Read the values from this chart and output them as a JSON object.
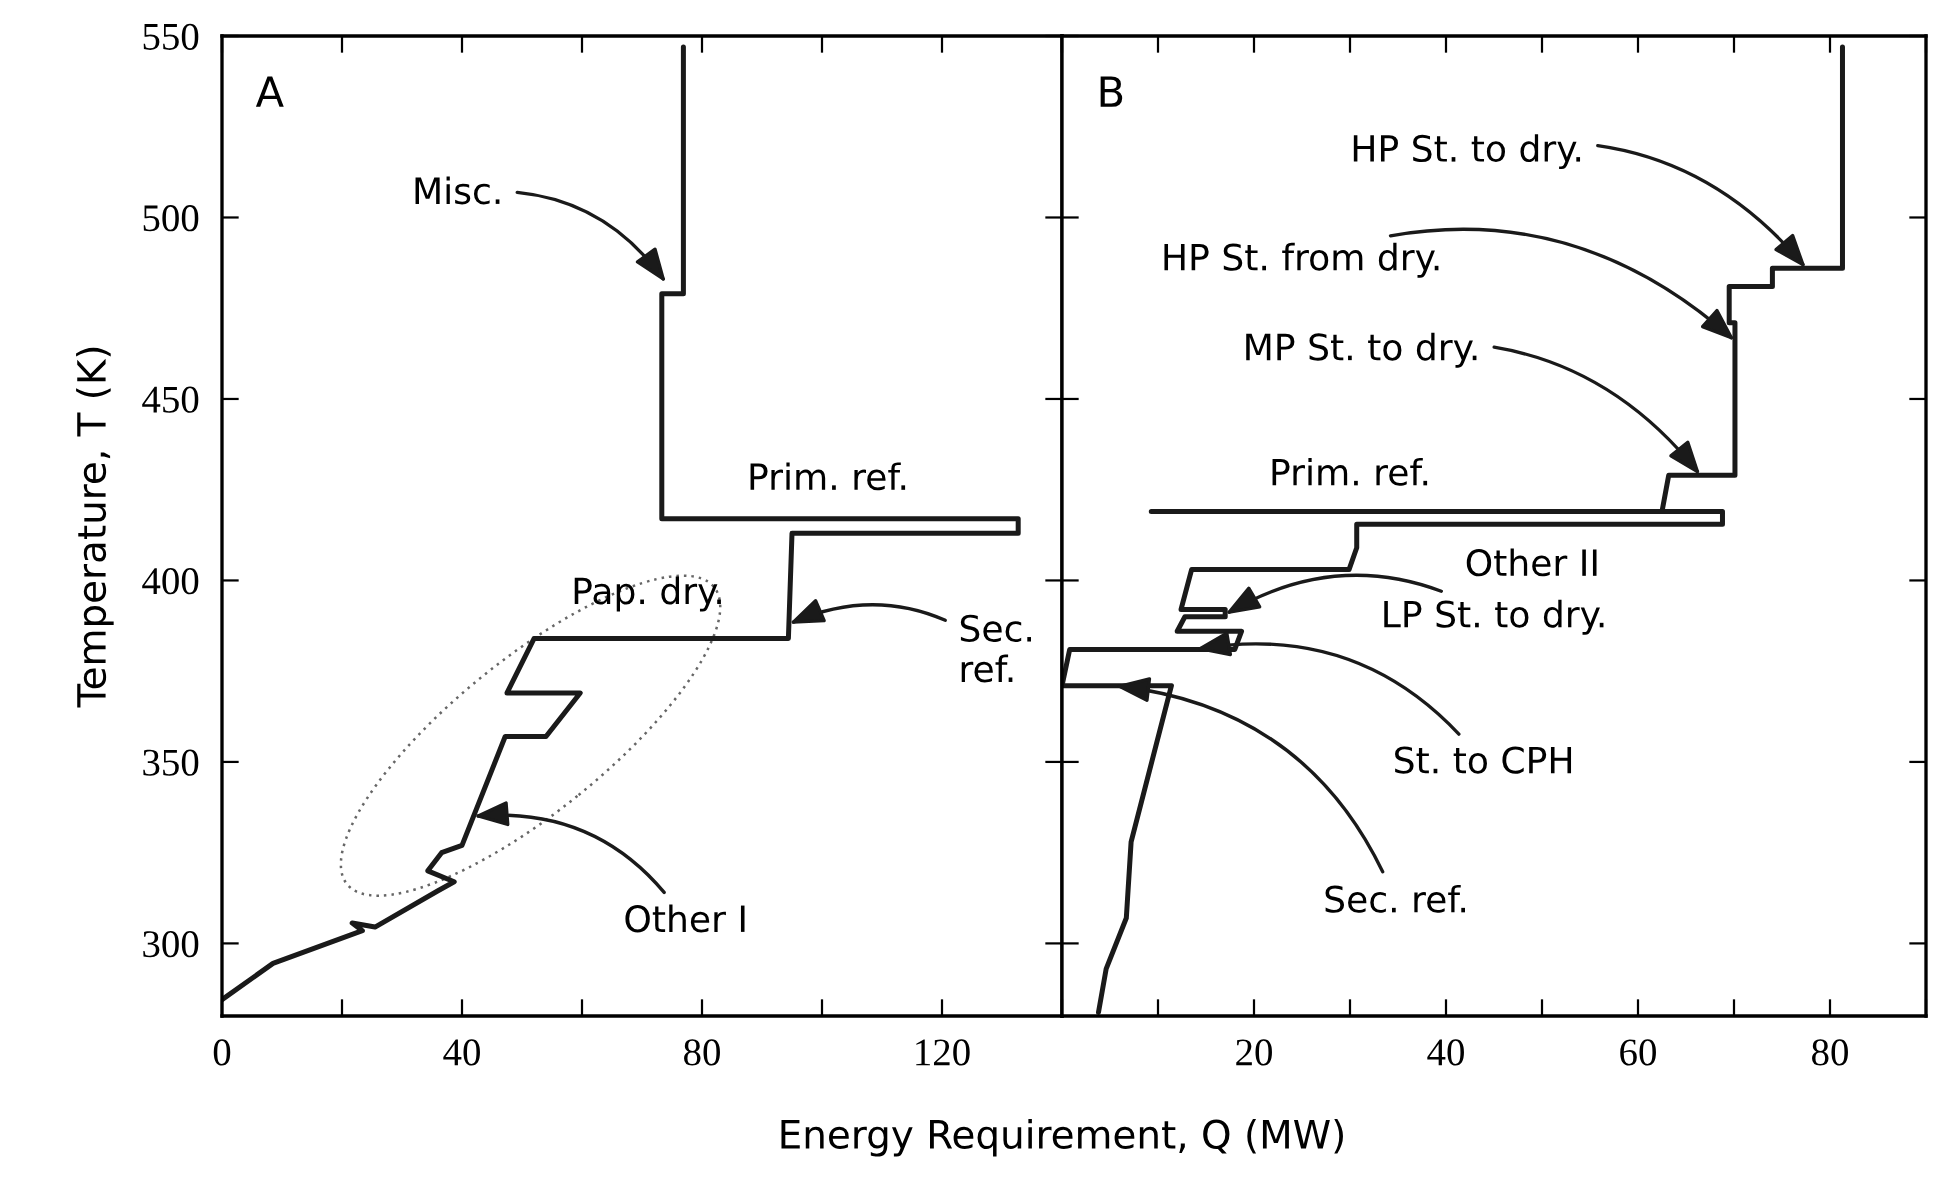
{
  "chart_data": [
    {
      "type": "line",
      "title": "A",
      "xlabel": "Energy Requirement, Q (MW)",
      "ylabel": "Temperature, T (K)",
      "xlim": [
        0,
        140
      ],
      "xticks": [
        0,
        {
          "value": 20,
          "label": null
        },
        40,
        {
          "value": 60,
          "label": null
        },
        80,
        {
          "value": 100,
          "label": null
        },
        120,
        {
          "value": 140,
          "label": null
        }
      ],
      "ylim": [
        280,
        550
      ],
      "yticks": [
        300,
        350,
        400,
        450,
        500,
        550
      ],
      "series": [
        {
          "color": "#1a1a1a",
          "x": [
            0,
            8.5,
            23.4,
            21.7,
            25.5,
            36,
            38.7,
            34.3,
            36.6,
            40,
            47.2,
            54,
            59.7,
            47.5,
            52,
            94.4,
            95,
            132.7,
            132.7,
            73.3,
            73.3,
            76.9,
            76.9
          ],
          "values": [
            284.5,
            294.5,
            303.5,
            305.6,
            304.5,
            314.5,
            317,
            320,
            325,
            327,
            357,
            357,
            369,
            369,
            384,
            384,
            413,
            413,
            417,
            417,
            479,
            479,
            547
          ]
        }
      ],
      "annotations": [
        {
          "text": "Misc.",
          "x": 74,
          "y": 482
        },
        {
          "text": "Prim. ref.",
          "x": 101,
          "y": 417
        },
        {
          "text": "Pap. dry.",
          "x": 71,
          "y": 384
        },
        {
          "text": "Sec.\nref.",
          "x": 94.5,
          "y": 388
        },
        {
          "text": "Other I",
          "x": 41.9,
          "y": 335
        }
      ]
    },
    {
      "type": "line",
      "title": "B",
      "tick_labels": "x",
      "xlim": [
        0,
        90
      ],
      "xticks": [
        {
          "value": 0,
          "label": null
        },
        {
          "value": 10,
          "label": null
        },
        20,
        {
          "value": 30,
          "label": null
        },
        40,
        {
          "value": 50,
          "label": null
        },
        60,
        {
          "value": 70,
          "label": null
        },
        80,
        {
          "value": 90,
          "label": null
        }
      ],
      "ylim": [
        280,
        550
      ],
      "yticks": [
        300,
        350,
        400,
        450,
        500,
        550
      ],
      "series": [
        {
          "color": "#1a1a1a",
          "x": [
            3.8,
            4.6,
            6.7,
            7.2,
            11.4,
            0,
            0.8,
            18,
            18.7,
            12,
            12.8,
            17,
            17,
            12.4,
            13.5,
            29.9,
            30.7,
            30.7,
            68.8,
            68.8,
            9.3,
            62.5,
            63.2,
            70.1,
            70.1,
            69.5,
            69.5,
            74,
            74,
            81.3,
            81.3
          ],
          "values": [
            281,
            293,
            307,
            328,
            371,
            371,
            381,
            381,
            386,
            386,
            390,
            390,
            392,
            392,
            403,
            403,
            409,
            415.5,
            415.5,
            419,
            419,
            419,
            429,
            429,
            471,
            471,
            481,
            481,
            486,
            486,
            547
          ]
        }
      ],
      "annotations": [
        {
          "text": "HP St. to dry.",
          "x": 77.5,
          "y": 486
        },
        {
          "text": "HP St. from dry.",
          "x": 70.1,
          "y": 466
        },
        {
          "text": "MP St. to dry.",
          "x": 66.5,
          "y": 429
        },
        {
          "text": "Prim. ref.",
          "x": 30,
          "y": 419
        },
        {
          "text": "Other II",
          "x": 49,
          "y": 415.5
        },
        {
          "text": "LP St. to dry.",
          "x": 17,
          "y": 390.6
        },
        {
          "text": "St. to CPH",
          "x": 13.9,
          "y": 381
        },
        {
          "text": "Sec. ref.",
          "x": 5.5,
          "y": 371
        }
      ]
    }
  ]
}
